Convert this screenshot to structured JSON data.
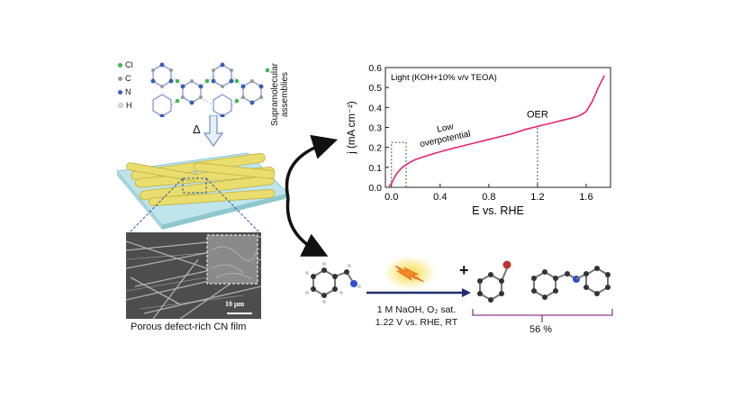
{
  "precursor": {
    "title": "Supramolecular assemblies",
    "legend": [
      {
        "label": "Cl",
        "color": "#3cb84a"
      },
      {
        "label": "C",
        "color": "#9a9a9a"
      },
      {
        "label": "N",
        "color": "#3a5fb8"
      },
      {
        "label": "H",
        "color": "#e6e6e6"
      }
    ],
    "heat_symbol": "Δ"
  },
  "film": {
    "scale_bar": "10 μm",
    "caption": "Porous defect-rich CN film"
  },
  "chart_data": {
    "type": "line",
    "title": "Light (KOH+10% v/v TEOA)",
    "xlabel": "E vs. RHE",
    "ylabel": "j (mA cm⁻²)",
    "xlim": [
      -0.05,
      1.8
    ],
    "ylim": [
      0,
      0.6
    ],
    "xticks": [
      0.0,
      0.4,
      0.8,
      1.2,
      1.6
    ],
    "yticks": [
      0.0,
      0.1,
      0.2,
      0.3,
      0.4,
      0.5,
      0.6
    ],
    "x": [
      -0.02,
      0.0,
      0.02,
      0.05,
      0.08,
      0.1,
      0.15,
      0.2,
      0.3,
      0.4,
      0.5,
      0.6,
      0.7,
      0.8,
      0.9,
      1.0,
      1.1,
      1.2,
      1.3,
      1.4,
      1.5,
      1.55,
      1.6,
      1.65,
      1.7,
      1.75
    ],
    "y": [
      0.005,
      0.02,
      0.045,
      0.075,
      0.095,
      0.105,
      0.125,
      0.14,
      0.16,
      0.178,
      0.195,
      0.21,
      0.225,
      0.24,
      0.255,
      0.27,
      0.29,
      0.305,
      0.32,
      0.335,
      0.35,
      0.36,
      0.38,
      0.43,
      0.5,
      0.56
    ],
    "series_color": "#e8256e",
    "annotations": {
      "low_overpotential": "Low overpotential",
      "oer": "OER",
      "oer_x": 1.2,
      "box_x": [
        0.0,
        0.12
      ],
      "box_y": [
        0.0,
        0.225
      ]
    }
  },
  "reaction": {
    "conditions_line1": "1 M NaOH, O₂ sat.",
    "conditions_line2": "1.22 V vs. RHE, RT",
    "plus": "+",
    "yield": "56 %",
    "light_color": "#f4d62b",
    "arrow_color": "#1f2f6e",
    "bracket_color": "#8e3b8e"
  }
}
